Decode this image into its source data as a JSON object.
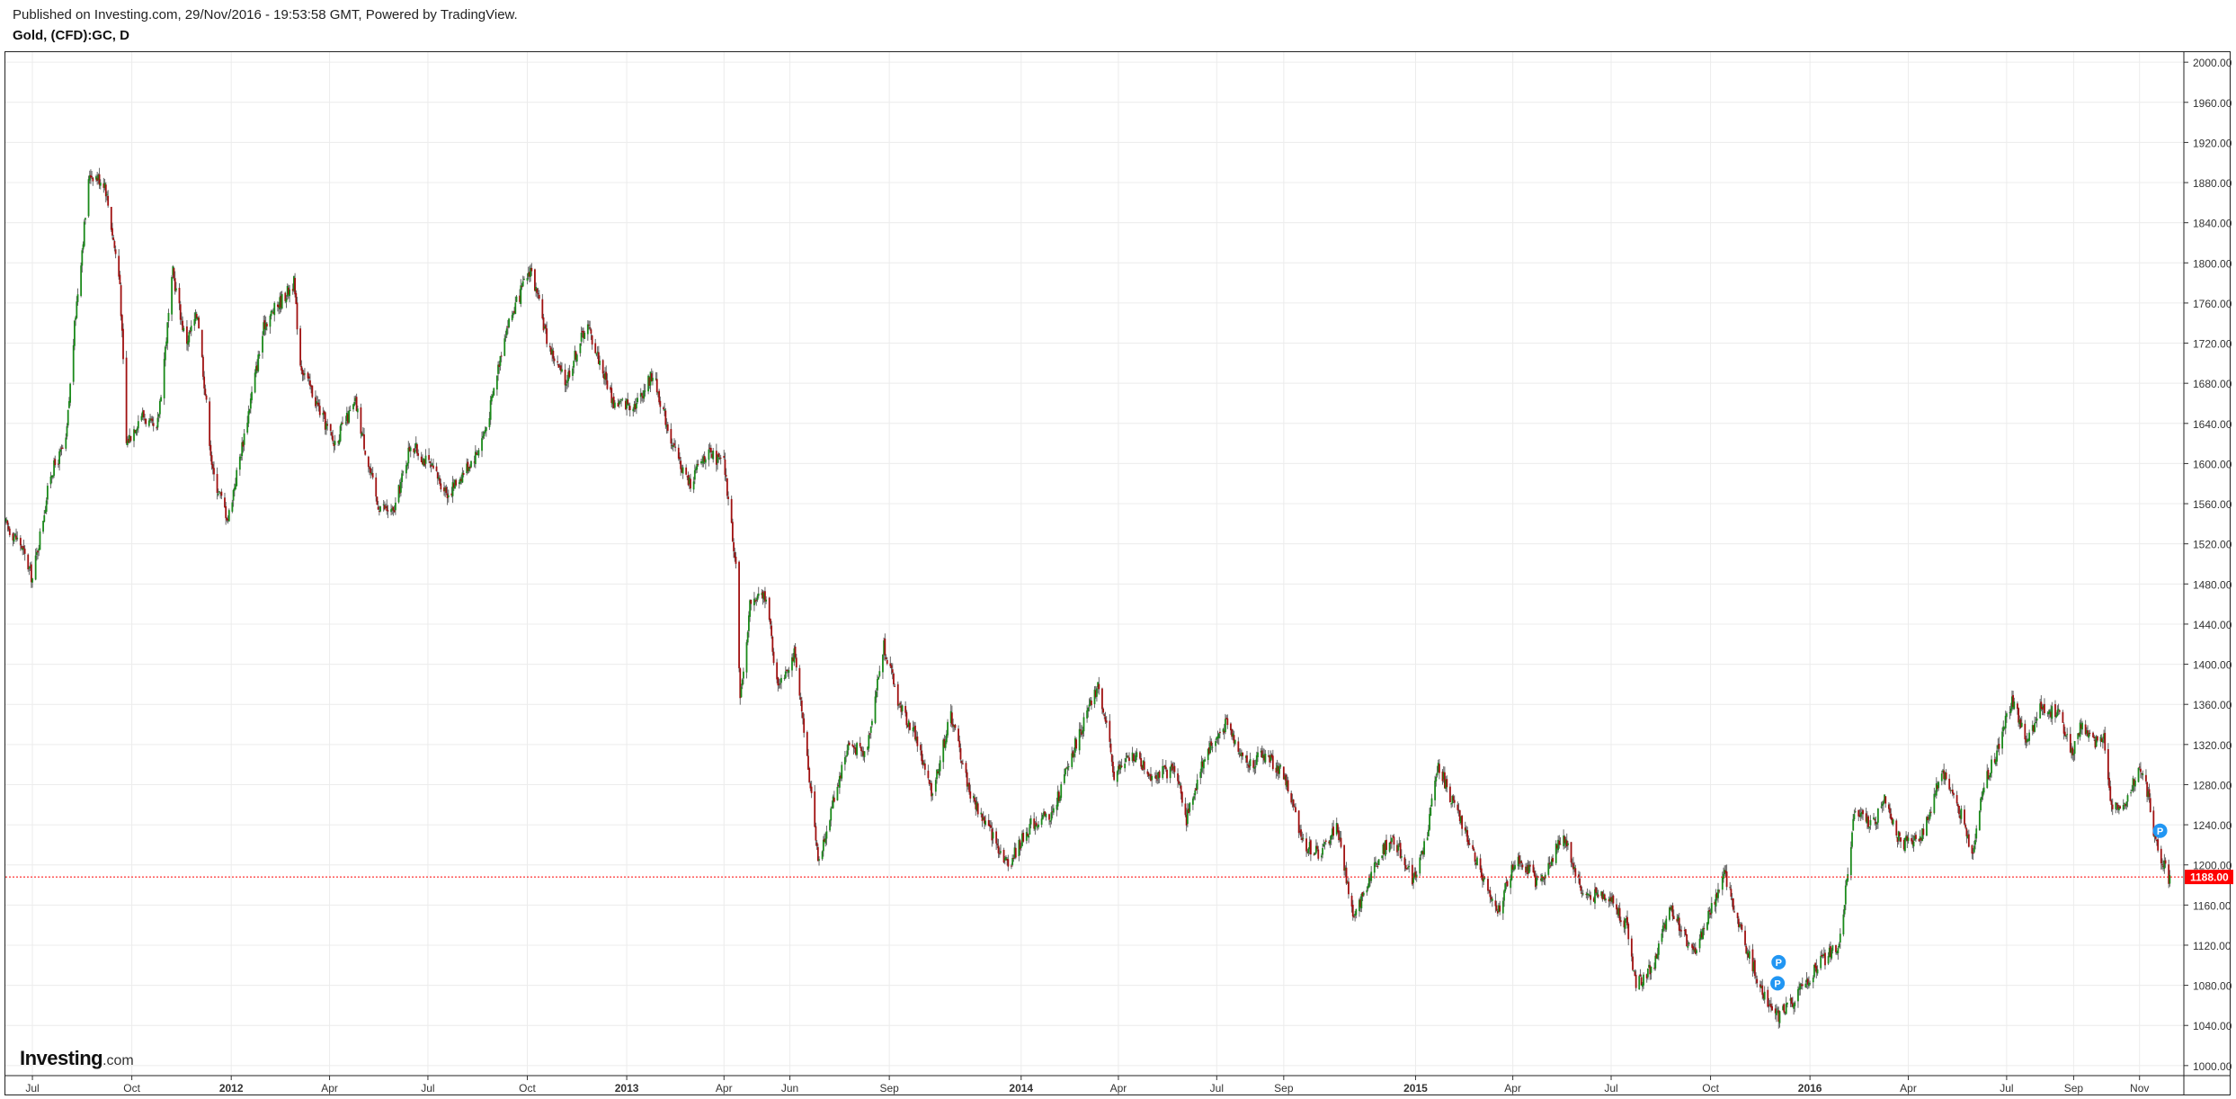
{
  "header": {
    "published": "Published on Investing.com, 29/Nov/2016 - 19:53:58 GMT, Powered by TradingView.",
    "symbol": "Gold, (CFD):GC, D"
  },
  "logo": {
    "brand": "Investing",
    "suffix": ".com"
  },
  "price_marker": {
    "label": "1188.00",
    "value": 1188,
    "color": "#ff0000"
  },
  "colors": {
    "up": "#1a8a1a",
    "down": "#a01010",
    "grid": "#ececec",
    "axis": "#333333",
    "event": "#2196f3"
  },
  "chart_data": {
    "type": "candlestick",
    "title": "Gold, (CFD):GC, D",
    "ylim": [
      990,
      2010
    ],
    "xlim": [
      "2011-06-06",
      "2016-12-12"
    ],
    "grid": true,
    "y_ticks": [
      "1000.00",
      "1040.00",
      "1080.00",
      "1120.00",
      "1160.00",
      "1200.00",
      "1240.00",
      "1280.00",
      "1320.00",
      "1360.00",
      "1400.00",
      "1440.00",
      "1480.00",
      "1520.00",
      "1560.00",
      "1600.00",
      "1640.00",
      "1680.00",
      "1720.00",
      "1760.00",
      "1800.00",
      "1840.00",
      "1880.00",
      "1920.00",
      "1960.00",
      "2000.00"
    ],
    "x_ticks": [
      {
        "label": "Jul",
        "date": "2011-07-01",
        "bold": false
      },
      {
        "label": "Oct",
        "date": "2011-10-01",
        "bold": false
      },
      {
        "label": "2012",
        "date": "2012-01-01",
        "bold": true
      },
      {
        "label": "Apr",
        "date": "2012-04-01",
        "bold": false
      },
      {
        "label": "Jul",
        "date": "2012-07-01",
        "bold": false
      },
      {
        "label": "Oct",
        "date": "2012-10-01",
        "bold": false
      },
      {
        "label": "2013",
        "date": "2013-01-01",
        "bold": true
      },
      {
        "label": "Apr",
        "date": "2013-04-01",
        "bold": false
      },
      {
        "label": "Jun",
        "date": "2013-06-01",
        "bold": false
      },
      {
        "label": "Sep",
        "date": "2013-09-01",
        "bold": false
      },
      {
        "label": "2014",
        "date": "2014-01-01",
        "bold": true
      },
      {
        "label": "Apr",
        "date": "2014-04-01",
        "bold": false
      },
      {
        "label": "Jul",
        "date": "2014-07-01",
        "bold": false
      },
      {
        "label": "Sep",
        "date": "2014-09-01",
        "bold": false
      },
      {
        "label": "2015",
        "date": "2015-01-01",
        "bold": true
      },
      {
        "label": "Apr",
        "date": "2015-04-01",
        "bold": false
      },
      {
        "label": "Jul",
        "date": "2015-07-01",
        "bold": false
      },
      {
        "label": "Oct",
        "date": "2015-10-01",
        "bold": false
      },
      {
        "label": "2016",
        "date": "2016-01-01",
        "bold": true
      },
      {
        "label": "Apr",
        "date": "2016-04-01",
        "bold": false
      },
      {
        "label": "Jul",
        "date": "2016-07-01",
        "bold": false
      },
      {
        "label": "Sep",
        "date": "2016-09-01",
        "bold": false
      },
      {
        "label": "Nov",
        "date": "2016-11-01",
        "bold": false
      }
    ],
    "price_path": [
      [
        "2011-06-06",
        1540
      ],
      [
        "2011-06-20",
        1520
      ],
      [
        "2011-07-01",
        1485
      ],
      [
        "2011-07-18",
        1590
      ],
      [
        "2011-08-01",
        1620
      ],
      [
        "2011-08-10",
        1750
      ],
      [
        "2011-08-23",
        1890
      ],
      [
        "2011-09-06",
        1880
      ],
      [
        "2011-09-20",
        1780
      ],
      [
        "2011-09-26",
        1620
      ],
      [
        "2011-10-10",
        1650
      ],
      [
        "2011-10-24",
        1630
      ],
      [
        "2011-11-08",
        1790
      ],
      [
        "2011-11-20",
        1720
      ],
      [
        "2011-12-01",
        1750
      ],
      [
        "2011-12-15",
        1590
      ],
      [
        "2011-12-29",
        1545
      ],
      [
        "2012-01-15",
        1640
      ],
      [
        "2012-02-01",
        1740
      ],
      [
        "2012-02-28",
        1780
      ],
      [
        "2012-03-05",
        1700
      ],
      [
        "2012-03-20",
        1660
      ],
      [
        "2012-04-05",
        1620
      ],
      [
        "2012-04-25",
        1660
      ],
      [
        "2012-05-15",
        1560
      ],
      [
        "2012-05-30",
        1550
      ],
      [
        "2012-06-15",
        1620
      ],
      [
        "2012-07-01",
        1600
      ],
      [
        "2012-07-20",
        1570
      ],
      [
        "2012-08-15",
        1610
      ],
      [
        "2012-08-25",
        1640
      ],
      [
        "2012-09-10",
        1730
      ],
      [
        "2012-10-04",
        1795
      ],
      [
        "2012-10-20",
        1720
      ],
      [
        "2012-11-05",
        1680
      ],
      [
        "2012-11-25",
        1740
      ],
      [
        "2012-12-20",
        1660
      ],
      [
        "2013-01-10",
        1660
      ],
      [
        "2013-01-25",
        1690
      ],
      [
        "2013-02-15",
        1610
      ],
      [
        "2013-02-28",
        1580
      ],
      [
        "2013-03-15",
        1610
      ],
      [
        "2013-04-01",
        1600
      ],
      [
        "2013-04-12",
        1500
      ],
      [
        "2013-04-16",
        1360
      ],
      [
        "2013-04-25",
        1460
      ],
      [
        "2013-05-10",
        1470
      ],
      [
        "2013-05-20",
        1380
      ],
      [
        "2013-06-05",
        1410
      ],
      [
        "2013-06-20",
        1280
      ],
      [
        "2013-06-28",
        1200
      ],
      [
        "2013-07-10",
        1260
      ],
      [
        "2013-07-25",
        1320
      ],
      [
        "2013-08-10",
        1310
      ],
      [
        "2013-08-27",
        1420
      ],
      [
        "2013-09-10",
        1360
      ],
      [
        "2013-09-25",
        1330
      ],
      [
        "2013-10-10",
        1270
      ],
      [
        "2013-10-28",
        1350
      ],
      [
        "2013-11-15",
        1270
      ],
      [
        "2013-12-05",
        1230
      ],
      [
        "2013-12-20",
        1200
      ],
      [
        "2014-01-10",
        1240
      ],
      [
        "2014-01-30",
        1250
      ],
      [
        "2014-02-20",
        1320
      ],
      [
        "2014-03-14",
        1380
      ],
      [
        "2014-03-28",
        1290
      ],
      [
        "2014-04-15",
        1310
      ],
      [
        "2014-05-01",
        1290
      ],
      [
        "2014-05-25",
        1295
      ],
      [
        "2014-06-03",
        1245
      ],
      [
        "2014-06-20",
        1310
      ],
      [
        "2014-07-10",
        1340
      ],
      [
        "2014-07-30",
        1300
      ],
      [
        "2014-08-15",
        1310
      ],
      [
        "2014-09-01",
        1290
      ],
      [
        "2014-09-20",
        1220
      ],
      [
        "2014-10-05",
        1210
      ],
      [
        "2014-10-20",
        1240
      ],
      [
        "2014-11-05",
        1145
      ],
      [
        "2014-11-20",
        1190
      ],
      [
        "2014-12-10",
        1230
      ],
      [
        "2014-12-30",
        1185
      ],
      [
        "2015-01-10",
        1220
      ],
      [
        "2015-01-22",
        1300
      ],
      [
        "2015-02-05",
        1260
      ],
      [
        "2015-02-25",
        1210
      ],
      [
        "2015-03-17",
        1150
      ],
      [
        "2015-04-05",
        1210
      ],
      [
        "2015-04-25",
        1180
      ],
      [
        "2015-05-18",
        1230
      ],
      [
        "2015-06-05",
        1170
      ],
      [
        "2015-06-28",
        1170
      ],
      [
        "2015-07-15",
        1140
      ],
      [
        "2015-07-24",
        1080
      ],
      [
        "2015-08-10",
        1100
      ],
      [
        "2015-08-24",
        1160
      ],
      [
        "2015-09-15",
        1110
      ],
      [
        "2015-10-14",
        1190
      ],
      [
        "2015-11-05",
        1110
      ],
      [
        "2015-11-20",
        1070
      ],
      [
        "2015-12-03",
        1050
      ],
      [
        "2015-12-20",
        1070
      ],
      [
        "2016-01-08",
        1100
      ],
      [
        "2016-01-28",
        1120
      ],
      [
        "2016-02-11",
        1250
      ],
      [
        "2016-03-01",
        1240
      ],
      [
        "2016-03-10",
        1270
      ],
      [
        "2016-03-25",
        1220
      ],
      [
        "2016-04-15",
        1230
      ],
      [
        "2016-05-02",
        1295
      ],
      [
        "2016-05-20",
        1250
      ],
      [
        "2016-05-30",
        1210
      ],
      [
        "2016-06-10",
        1280
      ],
      [
        "2016-06-24",
        1320
      ],
      [
        "2016-07-06",
        1365
      ],
      [
        "2016-07-20",
        1320
      ],
      [
        "2016-08-02",
        1360
      ],
      [
        "2016-08-18",
        1350
      ],
      [
        "2016-08-31",
        1310
      ],
      [
        "2016-09-08",
        1340
      ],
      [
        "2016-09-20",
        1320
      ],
      [
        "2016-09-29",
        1330
      ],
      [
        "2016-10-05",
        1260
      ],
      [
        "2016-10-20",
        1265
      ],
      [
        "2016-11-01",
        1300
      ],
      [
        "2016-11-09",
        1270
      ],
      [
        "2016-11-15",
        1225
      ],
      [
        "2016-11-29",
        1185
      ]
    ],
    "events": [
      {
        "label": "P",
        "date": "2015-12-03",
        "value": 1103
      },
      {
        "label": "P",
        "date": "2015-12-02",
        "value": 1082
      },
      {
        "label": "P",
        "date": "2016-11-20",
        "value": 1234
      }
    ]
  }
}
